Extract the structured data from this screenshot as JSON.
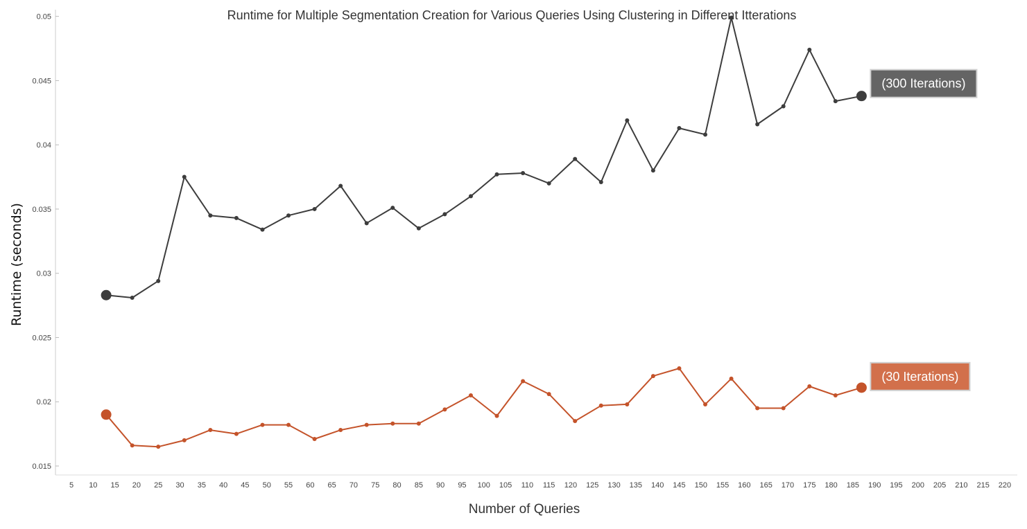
{
  "chart_data": {
    "type": "line",
    "title": "Runtime for Multiple Segmentation Creation for Various Queries Using Clustering in Different Itterations",
    "xlabel": "Number of Queries",
    "ylabel": "Runtime (seconds)",
    "xlim": [
      3,
      222
    ],
    "ylim": [
      0.015,
      0.0508
    ],
    "x_ticks": [
      5,
      10,
      15,
      20,
      25,
      30,
      35,
      40,
      45,
      50,
      55,
      60,
      65,
      70,
      75,
      80,
      85,
      90,
      95,
      100,
      105,
      110,
      115,
      120,
      125,
      130,
      135,
      140,
      145,
      150,
      155,
      160,
      165,
      170,
      175,
      180,
      185,
      190,
      195,
      200,
      205,
      210,
      215,
      220
    ],
    "y_ticks": [
      "0.015",
      "0.02",
      "0.025",
      "0.03",
      "0.035",
      "0.04",
      "0.045",
      "0.05"
    ],
    "grid": false,
    "x": [
      13,
      19,
      25,
      31,
      37,
      43,
      49,
      55,
      61,
      67,
      73,
      79,
      85,
      91,
      97,
      103,
      109,
      115,
      121,
      127,
      133,
      139,
      145,
      151,
      157,
      163,
      169,
      175,
      181,
      187
    ],
    "series": [
      {
        "name": "(300 Iterations)",
        "color": "#3d3d3d",
        "label_bg": "#646464",
        "values": [
          0.0283,
          0.0281,
          0.0294,
          0.0375,
          0.0345,
          0.0343,
          0.0334,
          0.0345,
          0.035,
          0.0368,
          0.0339,
          0.0351,
          0.0335,
          0.0346,
          0.036,
          0.0377,
          0.0378,
          0.037,
          0.0389,
          0.0371,
          0.0419,
          0.038,
          0.0413,
          0.0408,
          0.0499,
          0.0416,
          0.043,
          0.0474,
          0.0434,
          0.0438
        ]
      },
      {
        "name": "(30 Iterations)",
        "color": "#c4532a",
        "label_bg": "#d2704b",
        "values": [
          0.019,
          0.0166,
          0.0165,
          0.017,
          0.0178,
          0.0175,
          0.0182,
          0.0182,
          0.0171,
          0.0178,
          0.0182,
          0.0183,
          0.0183,
          0.0194,
          0.0205,
          0.0189,
          0.0216,
          0.0206,
          0.0185,
          0.0197,
          0.0198,
          0.022,
          0.0226,
          0.0198,
          0.0218,
          0.0195,
          0.0195,
          0.0212,
          0.0205,
          0.0211
        ]
      }
    ]
  }
}
